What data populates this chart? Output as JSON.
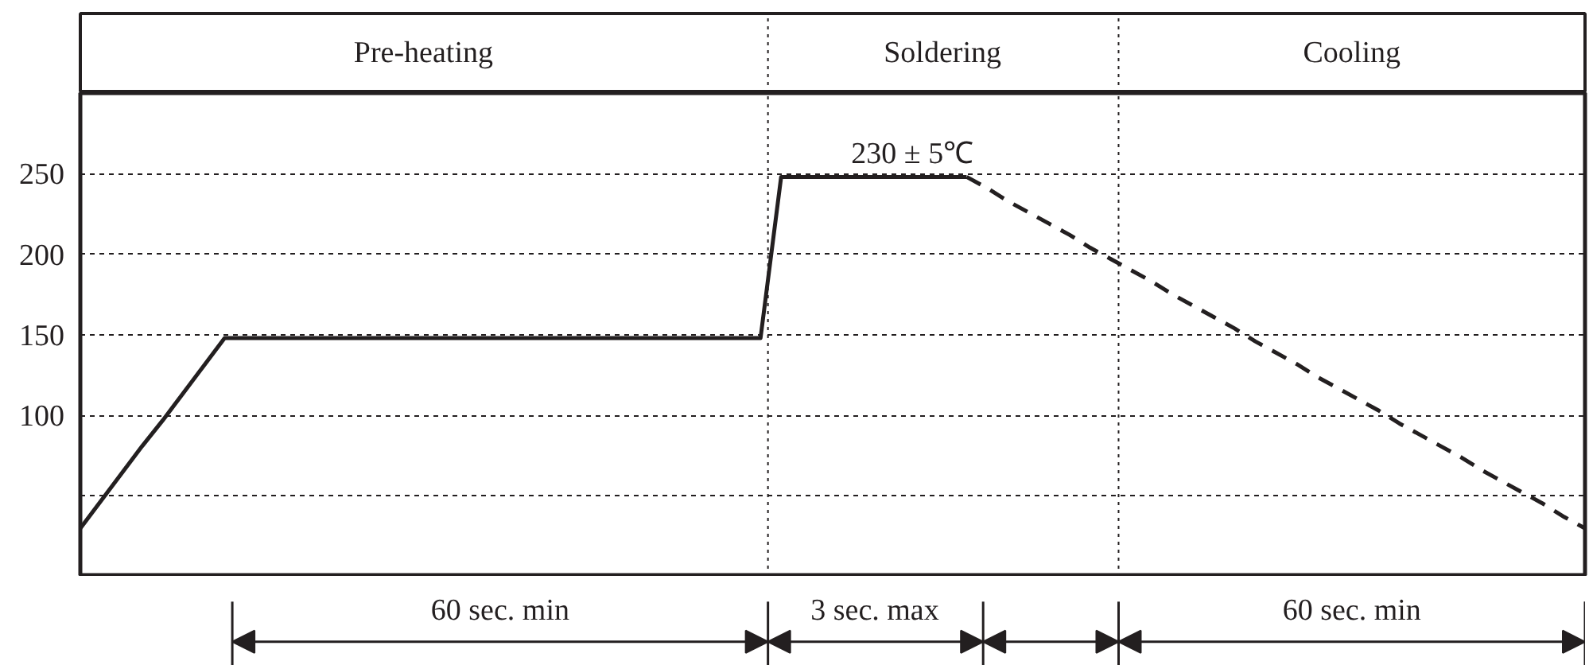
{
  "chart_data": {
    "type": "line",
    "categories": [
      null,
      null,
      null,
      null,
      null,
      null,
      null,
      null,
      null,
      null,
      null,
      null,
      null,
      null,
      null,
      null,
      null,
      null,
      null,
      null,
      null,
      null,
      null,
      null,
      null,
      null,
      null,
      null,
      null,
      null,
      null,
      null,
      null,
      null,
      null,
      null,
      null,
      null,
      null,
      null,
      null,
      null,
      null,
      null,
      null,
      null,
      null,
      null,
      null,
      null,
      null,
      null,
      null,
      null,
      null,
      null,
      null,
      null,
      null,
      null,
      null,
      null,
      null,
      null,
      null,
      null,
      null,
      null,
      null,
      null,
      null,
      null,
      null,
      null
    ],
    "ylim": [
      0,
      300
    ],
    "yticks": [
      {
        "value": 50,
        "label": null
      },
      100,
      150,
      200,
      250
    ],
    "grid": "y",
    "series": [
      {
        "values": [
          30,
          47,
          64,
          81,
          97,
          114,
          131,
          148,
          148,
          148,
          148,
          148,
          148,
          148,
          148,
          148,
          148,
          148,
          148,
          148,
          148,
          148,
          148,
          148,
          148,
          148,
          148,
          148,
          148,
          148,
          148,
          148,
          148,
          148,
          248,
          248,
          248,
          248,
          248,
          248,
          248,
          248,
          248,
          248,
          null,
          null,
          null,
          null,
          null,
          null,
          null,
          null,
          null,
          null,
          null,
          null,
          null,
          null,
          null,
          null,
          null,
          null,
          null,
          null,
          null,
          null,
          null,
          null,
          null,
          null,
          null,
          null,
          null,
          null
        ],
        "color": "#231f20",
        "line_style": "solid"
      },
      {
        "values": [
          null,
          null,
          null,
          null,
          null,
          null,
          null,
          null,
          null,
          null,
          null,
          null,
          null,
          null,
          null,
          null,
          null,
          null,
          null,
          null,
          null,
          null,
          null,
          null,
          null,
          null,
          null,
          null,
          null,
          null,
          null,
          null,
          null,
          null,
          null,
          null,
          null,
          null,
          null,
          null,
          null,
          null,
          null,
          248,
          241,
          233,
          226,
          219,
          212,
          204,
          197,
          190,
          183,
          175,
          168,
          161,
          154,
          146,
          139,
          132,
          124,
          117,
          110,
          103,
          95,
          88,
          81,
          74,
          66,
          59,
          52,
          45,
          37,
          30
        ],
        "color": "#231f20",
        "line_style": "dashed"
      }
    ],
    "annotations": [
      "Pre-heating",
      "Soldering",
      "Cooling",
      "230 ± 5℃",
      "60 sec. min",
      "3 sec. max",
      "60 sec. min"
    ]
  }
}
